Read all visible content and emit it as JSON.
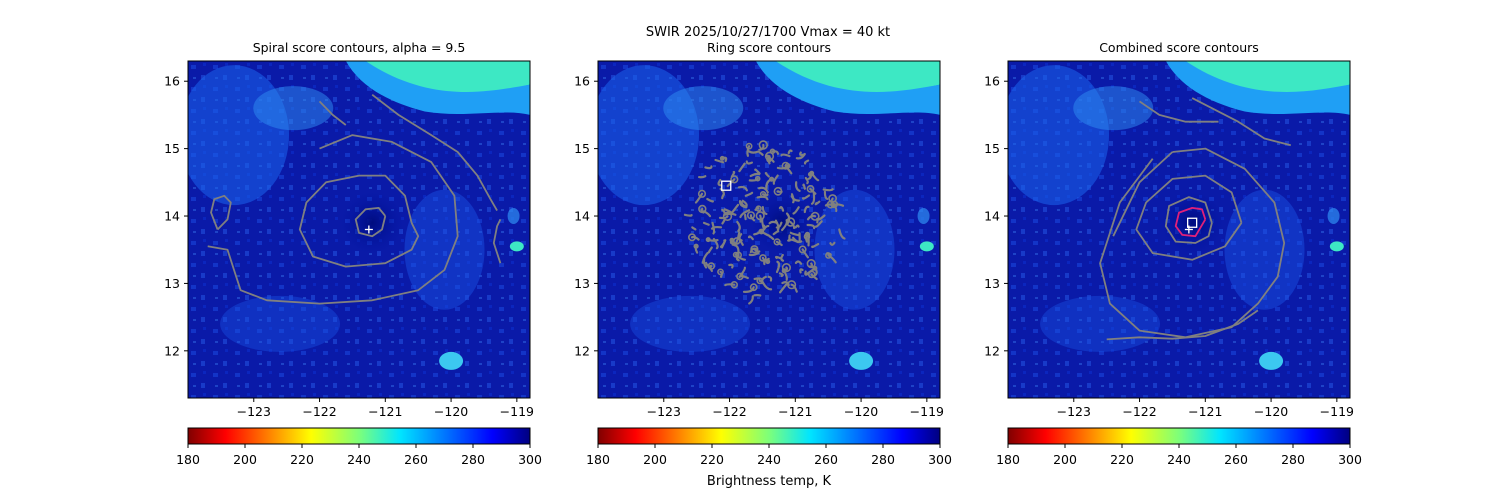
{
  "suptitle": "SWIR  2025/10/27/1700    Vmax = 40 kt",
  "colorbar_label": "Brightness temp, K",
  "colormap": "jet_reversed",
  "colors": {
    "contour": "#808080",
    "highlight": "#e0207a",
    "marker": "#ffffff",
    "background": "#0a1aa8"
  },
  "chart_data": [
    {
      "type": "contour",
      "title": "Spiral score contours, alpha =  9.5",
      "xlim": [
        -124.0,
        -118.8
      ],
      "ylim": [
        11.3,
        16.3
      ],
      "x_ticks": [
        -123,
        -122,
        -121,
        -120,
        -119
      ],
      "y_ticks": [
        12,
        13,
        14,
        15,
        16
      ],
      "colorbar": {
        "min": 180,
        "max": 300,
        "ticks": [
          180,
          200,
          220,
          240,
          260,
          280,
          300
        ]
      },
      "center_marker": {
        "symbol": "plus",
        "lon": -121.25,
        "lat": 13.8
      },
      "contours": [
        {
          "level": "inner",
          "lon": [
            -121.0,
            -121.1,
            -121.3,
            -121.45,
            -121.4,
            -121.2,
            -121.05,
            -121.0
          ],
          "lat": [
            14.0,
            14.12,
            14.1,
            13.95,
            13.75,
            13.7,
            13.8,
            14.0
          ]
        },
        {
          "level": "middle",
          "lon": [
            -120.6,
            -120.7,
            -121.0,
            -121.4,
            -121.9,
            -122.2,
            -122.3,
            -122.1,
            -121.6,
            -121.0,
            -120.6,
            -120.5,
            -120.6
          ],
          "lat": [
            13.9,
            14.3,
            14.6,
            14.6,
            14.5,
            14.2,
            13.8,
            13.4,
            13.25,
            13.3,
            13.5,
            13.7,
            13.9
          ]
        },
        {
          "level": "outer",
          "lon": [
            -122.0,
            -121.5,
            -120.9,
            -120.3,
            -119.95,
            -119.9,
            -120.1,
            -120.5,
            -121.2,
            -122.0,
            -122.8,
            -123.2,
            -123.3,
            -123.4,
            -123.7
          ],
          "lat": [
            15.0,
            15.2,
            15.1,
            14.8,
            14.3,
            13.7,
            13.2,
            12.9,
            12.75,
            12.7,
            12.75,
            12.9,
            13.2,
            13.5,
            13.55
          ]
        },
        {
          "level": "left-blob",
          "lon": [
            -123.55,
            -123.65,
            -123.6,
            -123.45,
            -123.35,
            -123.4,
            -123.55
          ],
          "lat": [
            13.8,
            14.05,
            14.25,
            14.3,
            14.2,
            13.95,
            13.8
          ]
        },
        {
          "level": "upper-left",
          "lon": [
            -122.0,
            -121.8,
            -121.6
          ],
          "lat": [
            15.7,
            15.5,
            15.35
          ]
        },
        {
          "level": "upper-right",
          "lon": [
            -121.2,
            -120.8,
            -120.3,
            -119.9,
            -119.6,
            -119.4,
            -119.3
          ],
          "lat": [
            15.8,
            15.5,
            15.2,
            14.95,
            14.6,
            14.25,
            14.08
          ]
        },
        {
          "level": "right-edge",
          "lon": [
            -119.25,
            -119.35,
            -119.3,
            -119.25
          ],
          "lat": [
            13.3,
            13.6,
            13.85,
            13.95
          ]
        }
      ]
    },
    {
      "type": "contour",
      "title": "Ring score contours",
      "xlim": [
        -124.0,
        -118.8
      ],
      "ylim": [
        11.3,
        16.3
      ],
      "x_ticks": [
        -123,
        -122,
        -121,
        -120,
        -119
      ],
      "y_ticks": [
        12,
        13,
        14,
        15,
        16
      ],
      "colorbar": {
        "min": 180,
        "max": 300,
        "ticks": [
          180,
          200,
          220,
          240,
          260,
          280,
          300
        ]
      },
      "center_marker": {
        "symbol": "square",
        "lon": -122.05,
        "lat": 14.45
      },
      "ring_region": {
        "center_lon": -121.5,
        "center_lat": 13.95,
        "radius_deg": 1.25
      }
    },
    {
      "type": "contour",
      "title": "Combined score contours",
      "xlim": [
        -124.0,
        -118.8
      ],
      "ylim": [
        11.3,
        16.3
      ],
      "x_ticks": [
        -123,
        -122,
        -121,
        -120,
        -119
      ],
      "y_ticks": [
        12,
        13,
        14,
        15,
        16
      ],
      "colorbar": {
        "min": 180,
        "max": 300,
        "ticks": [
          180,
          200,
          220,
          240,
          260,
          280,
          300
        ]
      },
      "center_marker": {
        "symbol": "plus",
        "lon": -121.25,
        "lat": 13.8
      },
      "best_marker": {
        "symbol": "square",
        "lon": -121.2,
        "lat": 13.9
      },
      "contours": [
        {
          "level": "highlight",
          "lon": [
            -121.0,
            -121.05,
            -121.2,
            -121.4,
            -121.45,
            -121.35,
            -121.15,
            -121.0
          ],
          "lat": [
            13.95,
            14.1,
            14.12,
            14.05,
            13.85,
            13.72,
            13.7,
            13.95
          ]
        },
        {
          "level": "inner",
          "lon": [
            -120.9,
            -121.0,
            -121.25,
            -121.55,
            -121.6,
            -121.45,
            -121.15,
            -120.95,
            -120.9
          ],
          "lat": [
            13.9,
            14.2,
            14.28,
            14.15,
            13.85,
            13.62,
            13.6,
            13.7,
            13.9
          ]
        },
        {
          "level": "middle",
          "lon": [
            -120.45,
            -120.6,
            -121.0,
            -121.5,
            -121.9,
            -122.05,
            -121.8,
            -121.2,
            -120.7,
            -120.45
          ],
          "lat": [
            13.9,
            14.35,
            14.6,
            14.55,
            14.2,
            13.8,
            13.45,
            13.35,
            13.55,
            13.9
          ]
        },
        {
          "level": "outer",
          "lon": [
            -121.5,
            -121.0,
            -120.4,
            -119.95,
            -119.8,
            -119.9,
            -120.2,
            -120.6,
            -121.3,
            -122.0,
            -122.45,
            -122.6,
            -122.3,
            -121.8
          ],
          "lat": [
            14.95,
            15.0,
            14.7,
            14.2,
            13.6,
            13.1,
            12.7,
            12.35,
            12.2,
            12.3,
            12.7,
            13.3,
            14.2,
            14.85
          ]
        },
        {
          "level": "spiral-tail",
          "lon": [
            -121.5,
            -122.0,
            -122.4
          ],
          "lat": [
            14.95,
            14.5,
            13.7
          ]
        },
        {
          "level": "bottom-arm",
          "lon": [
            -122.5,
            -122.0,
            -121.5,
            -121.0,
            -120.5,
            -120.2
          ],
          "lat": [
            12.17,
            12.2,
            12.18,
            12.22,
            12.4,
            12.6
          ]
        },
        {
          "level": "upper-left",
          "lon": [
            -122.0,
            -121.7,
            -121.3,
            -120.8
          ],
          "lat": [
            15.7,
            15.5,
            15.4,
            15.4
          ]
        },
        {
          "level": "upper-right",
          "lon": [
            -121.2,
            -120.9,
            -120.5,
            -120.1,
            -119.7
          ],
          "lat": [
            15.75,
            15.6,
            15.4,
            15.15,
            15.05
          ]
        }
      ]
    }
  ]
}
